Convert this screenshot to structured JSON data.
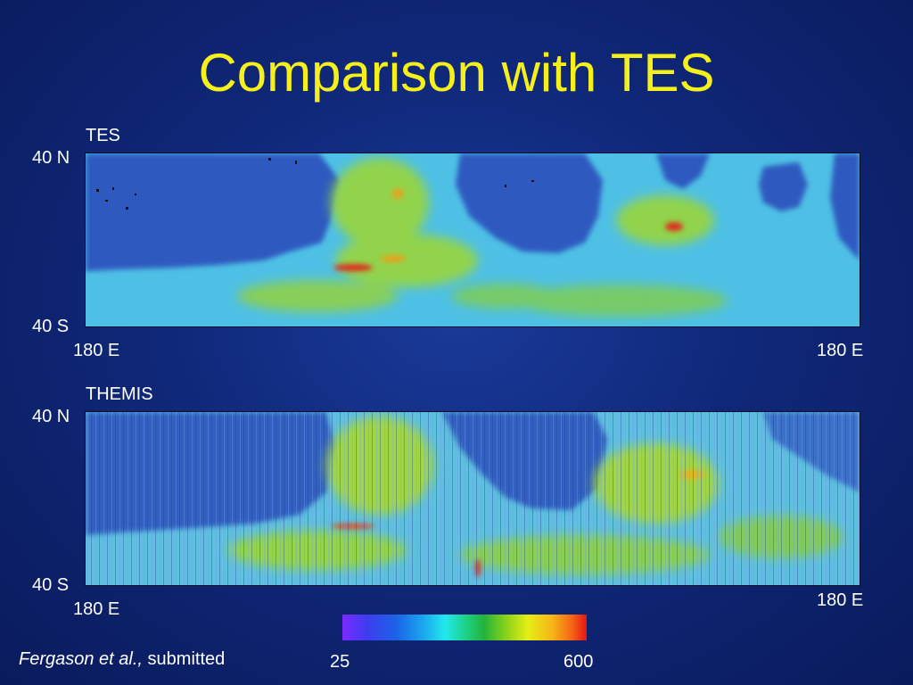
{
  "title": "Comparison with TES",
  "maps": [
    {
      "name": "TES",
      "lat_top": "40 N",
      "lat_bottom": "40 S",
      "lon_left": "180 E",
      "lon_right": "180 E"
    },
    {
      "name": "THEMIS",
      "lat_top": "40 N",
      "lat_bottom": "40 S",
      "lon_left": "180 E",
      "lon_right": "180 E"
    }
  ],
  "colorbar": {
    "min_label": "25",
    "max_label": "600"
  },
  "credit": {
    "authors": "Fergason et al.,",
    "status": "submitted"
  },
  "colors": {
    "title": "#f5ef1c",
    "background": "#10287a",
    "low_region": "#2f5ac0",
    "mid_region": "#4ec0e6",
    "high_region": "#9ad63a",
    "peak": "#e02a1a"
  }
}
